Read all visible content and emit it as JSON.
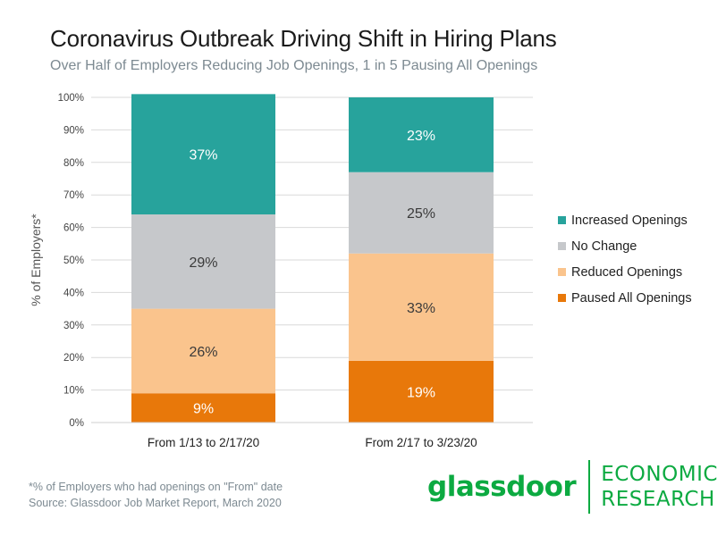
{
  "chart_data": {
    "type": "bar",
    "stacked": true,
    "title": "Coronavirus Outbreak Driving Shift in Hiring Plans",
    "subtitle": "Over Half of Employers Reducing Job Openings, 1 in 5 Pausing All Openings",
    "ylabel": "% of Employers*",
    "xlabel": "",
    "ylim": [
      0,
      100
    ],
    "yticks": [
      "0%",
      "10%",
      "20%",
      "30%",
      "40%",
      "50%",
      "60%",
      "70%",
      "80%",
      "90%",
      "100%"
    ],
    "grid": true,
    "legend_position": "right",
    "categories": [
      "From 1/13 to 2/17/20",
      "From 2/17 to 3/23/20"
    ],
    "series": [
      {
        "name": "Paused All Openings",
        "color": "#e8780a",
        "values": [
          9,
          19
        ],
        "labels": [
          "9%",
          "19%"
        ]
      },
      {
        "name": "Reduced Openings",
        "color": "#fac48d",
        "values": [
          26,
          33
        ],
        "labels": [
          "26%",
          "33%"
        ]
      },
      {
        "name": "No Change",
        "color": "#c6c8cb",
        "values": [
          29,
          25
        ],
        "labels": [
          "29%",
          "25%"
        ]
      },
      {
        "name": "Increased Openings",
        "color": "#27a39c",
        "values": [
          37,
          23
        ],
        "labels": [
          "37%",
          "23%"
        ]
      }
    ],
    "legend_order": [
      "Increased Openings",
      "No Change",
      "Reduced Openings",
      "Paused All Openings"
    ]
  },
  "footnote": {
    "line1": "*% of Employers who had openings on \"From\" date",
    "line2": "Source: Glassdoor Job Market Report, March 2020"
  },
  "logo": {
    "wordmark": "glassdoor",
    "sub_line1": "ECONOMIC",
    "sub_line2": "RESEARCH",
    "color": "#0caa41"
  }
}
